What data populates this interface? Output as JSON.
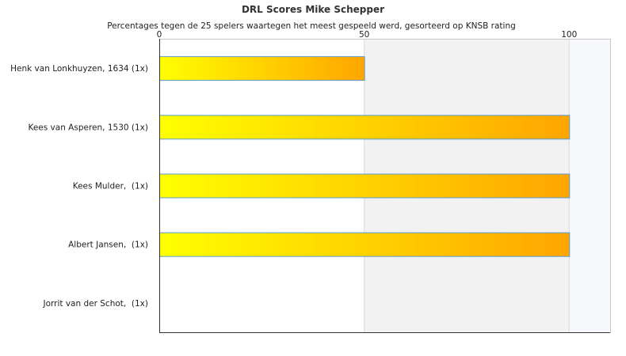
{
  "chart_data": {
    "type": "bar",
    "orientation": "horizontal",
    "title": "DRL Scores Mike Schepper",
    "subtitle": "Percentages tegen de 25 spelers waartegen het meest gespeeld werd, gesorteerd op KNSB rating",
    "categories": [
      "Henk van Lonkhuyzen, 1634 (1x)",
      "Kees van Asperen, 1530 (1x)",
      "Kees Mulder,  (1x)",
      "Albert Jansen,  (1x)",
      "Jorrit van der Schot,  (1x)"
    ],
    "values": [
      50,
      100,
      100,
      100,
      0
    ],
    "xlim": [
      0,
      110
    ],
    "xticks": [
      0,
      50,
      100
    ],
    "xtick_labels": [
      "0",
      "50",
      "100"
    ],
    "axis_position": "top",
    "grid": true,
    "bar_gradient": [
      "#ffff00",
      "#ffa500"
    ],
    "bar_border_color": "#5b9bd5",
    "band_colors": [
      "#ffffff",
      "#f2f2f2",
      "#f7f8fc"
    ]
  }
}
